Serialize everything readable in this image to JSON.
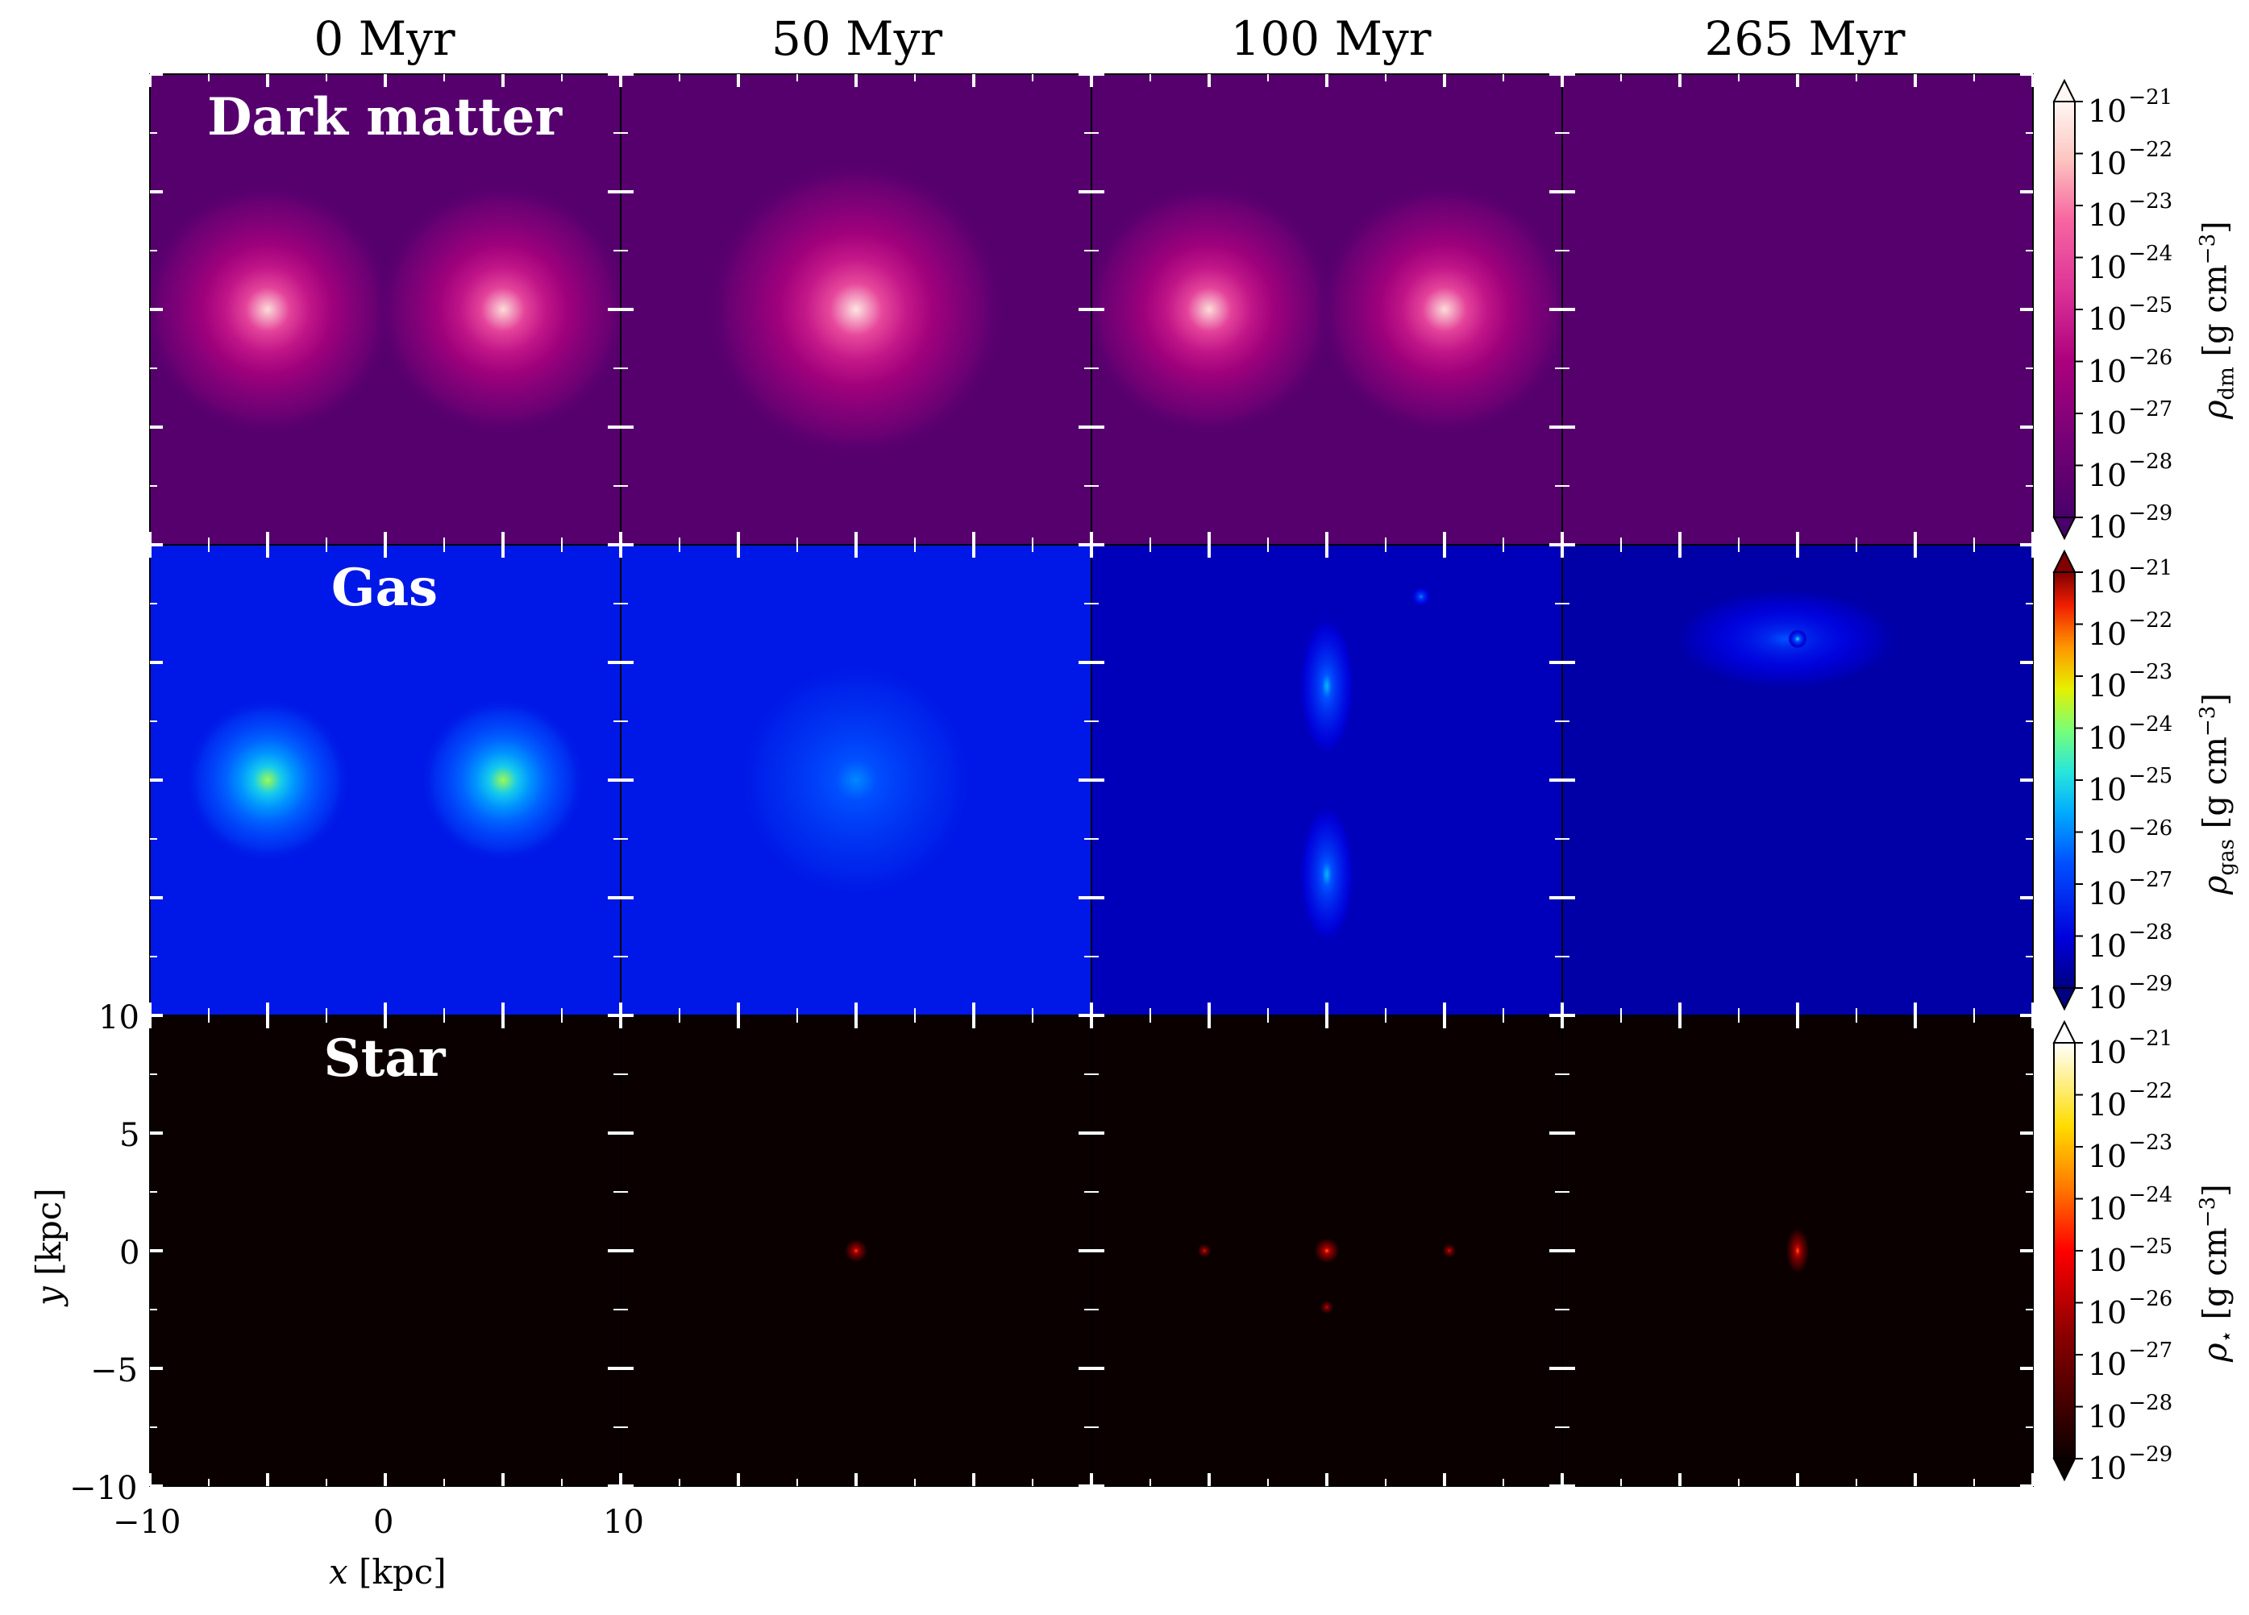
{
  "chart_data": {
    "type": "heatmap",
    "columns": [
      "0 Myr",
      "50 Myr",
      "100 Myr",
      "265 Myr"
    ],
    "rows": [
      {
        "label": "Dark matter",
        "colormap": "RdPu-magma",
        "colorbar_label": "ρdm [g cm−3]"
      },
      {
        "label": "Gas",
        "colormap": "jet",
        "colorbar_label": "ρgas [g cm−3]"
      },
      {
        "label": "Star",
        "colormap": "hot",
        "colorbar_label": "ρ⋆ [g cm−3]"
      }
    ],
    "colorbar_ticks": [
      "10",
      "10",
      "10",
      "10",
      "10",
      "10",
      "10",
      "10",
      "10"
    ],
    "colorbar_exponents": [
      "−21",
      "−22",
      "−23",
      "−24",
      "−25",
      "−26",
      "−27",
      "−28",
      "−29"
    ],
    "colorbar_range_log": [
      -29,
      -21
    ],
    "xlabel": "x [kpc]",
    "ylabel": "y [kpc]",
    "xlim": [
      -10,
      10
    ],
    "ylim": [
      -10,
      10
    ],
    "x_ticks": [
      "−10",
      "0",
      "10"
    ],
    "y_ticks": [
      "10",
      "5",
      "0",
      "−5",
      "−10"
    ],
    "blobs": [
      [
        [
          {
            "x": -5,
            "y": 0,
            "s": 5.5,
            "p": -21.6
          },
          {
            "x": 5,
            "y": 0,
            "s": 5.5,
            "p": -21.6
          }
        ],
        [
          {
            "x": -5,
            "y": 0,
            "s": 3.5,
            "p": -23.8
          },
          {
            "x": 5,
            "y": 0,
            "s": 3.5,
            "p": -23.8
          }
        ],
        []
      ],
      [
        [
          {
            "x": 0,
            "y": 0,
            "s": 6.5,
            "p": -21.4
          }
        ],
        [
          {
            "x": 0,
            "y": 0,
            "s": 0.45,
            "p": -21.4,
            "ax": 1.0,
            "ay": 3.0
          },
          {
            "x": 0,
            "y": 0,
            "s": 5.0,
            "p": -26.0
          }
        ],
        [
          {
            "x": 0,
            "y": 0,
            "s": 0.5,
            "p": -24.2
          }
        ]
      ],
      [
        [
          {
            "x": -5,
            "y": 0,
            "s": 5.5,
            "p": -21.6
          },
          {
            "x": 5,
            "y": 0,
            "s": 5.5,
            "p": -21.6
          }
        ],
        [
          {
            "x": 0,
            "y": 4,
            "s": 1.2,
            "p": -25.5,
            "ax": 1.0,
            "ay": 2.5
          },
          {
            "x": 0,
            "y": -4,
            "s": 1.2,
            "p": -25.5,
            "ax": 1.0,
            "ay": 2.5
          },
          {
            "x": 4,
            "y": 7.8,
            "s": 0.4,
            "p": -25.8
          }
        ],
        [
          {
            "x": 0,
            "y": 0,
            "s": 0.55,
            "p": -23.8
          },
          {
            "x": -5.2,
            "y": 0,
            "s": 0.3,
            "p": -24.8
          },
          {
            "x": 5.2,
            "y": 0,
            "s": 0.3,
            "p": -24.8
          },
          {
            "x": 0,
            "y": -2.4,
            "s": 0.3,
            "p": -25.2
          }
        ]
      ],
      [
        [],
        [
          {
            "x": -0.5,
            "y": 6.0,
            "s": 2.2,
            "p": -26.6,
            "ax": 2.2,
            "ay": 1.0
          },
          {
            "x": 0,
            "y": 6,
            "s": 0.4,
            "p": -24.6
          }
        ],
        [
          {
            "x": 0,
            "y": 0,
            "s": 0.5,
            "p": -24.0,
            "ax": 1.0,
            "ay": 2.0
          }
        ]
      ]
    ]
  }
}
